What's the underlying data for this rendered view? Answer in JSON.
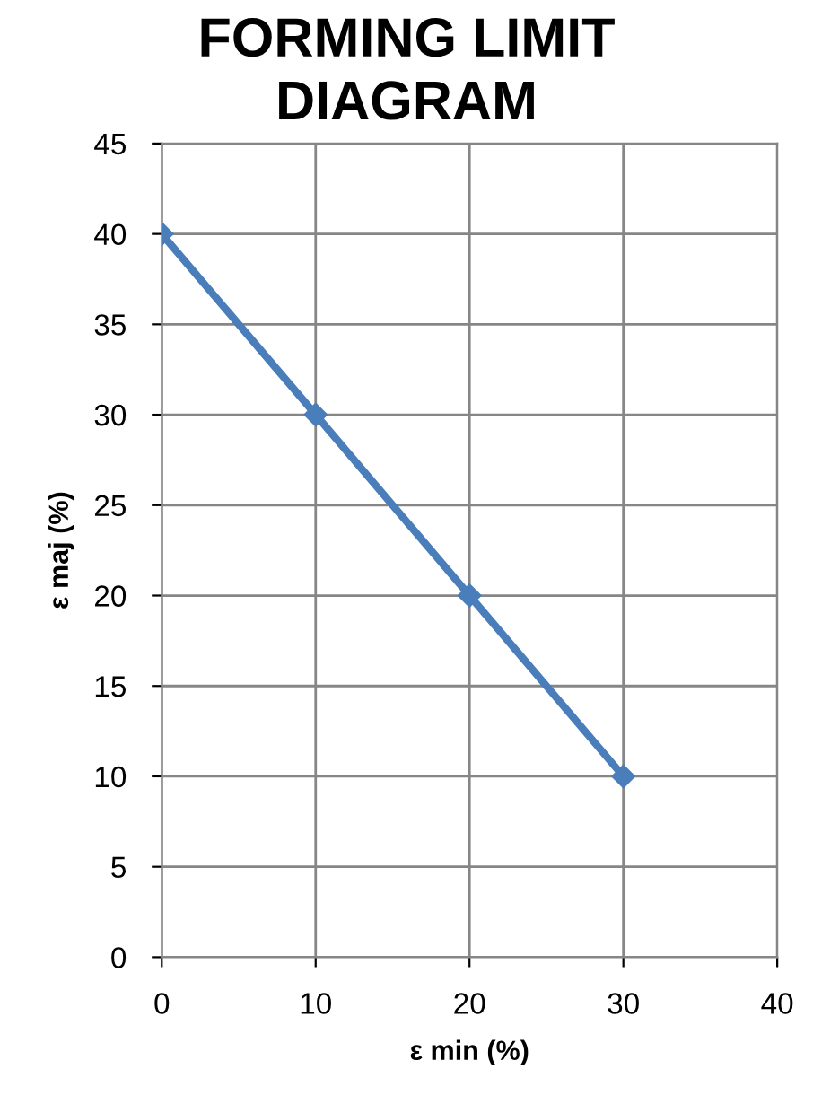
{
  "chart_data": {
    "type": "line",
    "title": "FORMING LIMIT\nDIAGRAM",
    "xlabel": "ε min (%)",
    "ylabel": "ε maj (%)",
    "x": [
      0,
      10,
      20,
      30
    ],
    "series": [
      {
        "color": "#4a7ebb",
        "values": [
          40,
          30,
          20,
          10
        ]
      }
    ],
    "xlim": [
      0,
      40
    ],
    "xticks": [
      0,
      10,
      20,
      30,
      40
    ],
    "ylim": [
      0,
      45
    ],
    "yticks": [
      0,
      5,
      10,
      15,
      20,
      25,
      30,
      35,
      40,
      45
    ],
    "grid": true,
    "marker": "diamond",
    "line_style": "solid"
  }
}
